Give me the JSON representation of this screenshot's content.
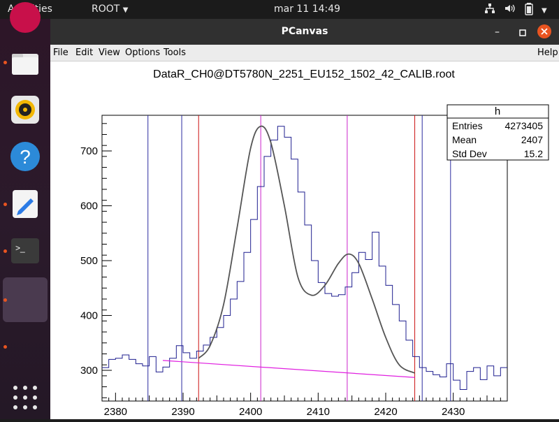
{
  "topbar": {
    "activities": "Activities",
    "app_menu": "ROOT",
    "clock": "mar 11  14:49"
  },
  "window": {
    "title": "PCanvas",
    "menu": {
      "file": "File",
      "edit": "Edit",
      "view": "View",
      "options": "Options",
      "tools": "Tools",
      "help": "Help"
    }
  },
  "stats": {
    "name": "h",
    "rows": [
      {
        "label": "Entries",
        "value": "4273405"
      },
      {
        "label": "Mean",
        "value": "2407"
      },
      {
        "label": "Std Dev",
        "value": "15.2"
      }
    ]
  },
  "colors": {
    "histogram": "#1f1f8f",
    "fit": "#555555",
    "background": "#e020e0",
    "marker_blue": "#2a2aa0",
    "marker_red": "#cc1111",
    "marker_magenta": "#cc22cc",
    "accent_orange": "#e95420"
  },
  "chart_data": {
    "type": "histogram",
    "title": "DataR_CH0@DT5780N_2251_EU152_1502_42_CALIB.root",
    "xlim": [
      2378,
      2438
    ],
    "ylim": [
      244,
      765
    ],
    "xticks": [
      2380,
      2390,
      2400,
      2410,
      2420,
      2430
    ],
    "yticks": [
      300,
      400,
      500,
      600,
      700
    ],
    "bin_width": 1,
    "bin_start": 2378,
    "counts": [
      305,
      320,
      322,
      328,
      320,
      312,
      308,
      325,
      297,
      306,
      322,
      345,
      332,
      322,
      335,
      346,
      360,
      378,
      400,
      430,
      462,
      515,
      575,
      635,
      690,
      720,
      745,
      725,
      685,
      625,
      565,
      500,
      460,
      440,
      435,
      438,
      452,
      478,
      515,
      502,
      552,
      490,
      455,
      420,
      390,
      355,
      325,
      305,
      298,
      292,
      288,
      312,
      282,
      265,
      298,
      305,
      283,
      308,
      290,
      305
    ],
    "fit_curve": {
      "x": [
        2392.3,
        2394,
        2396,
        2398,
        2400,
        2401.5,
        2403,
        2405,
        2407,
        2409,
        2411,
        2413,
        2414.5,
        2416,
        2418,
        2420,
        2422,
        2424.3
      ],
      "y": [
        322,
        345,
        420,
        560,
        705,
        745,
        715,
        600,
        470,
        437,
        455,
        495,
        512,
        495,
        430,
        360,
        310,
        295
      ]
    },
    "background_line": {
      "x": [
        2387,
        2424.3
      ],
      "y": [
        318,
        287
      ]
    },
    "markers": [
      {
        "x": 2384.8,
        "color": "blue"
      },
      {
        "x": 2389.8,
        "color": "blue"
      },
      {
        "x": 2392.3,
        "color": "red"
      },
      {
        "x": 2401.5,
        "color": "magenta"
      },
      {
        "x": 2414.3,
        "color": "magenta"
      },
      {
        "x": 2424.3,
        "color": "red"
      },
      {
        "x": 2425.4,
        "color": "blue"
      },
      {
        "x": 2429.6,
        "color": "blue"
      }
    ]
  }
}
